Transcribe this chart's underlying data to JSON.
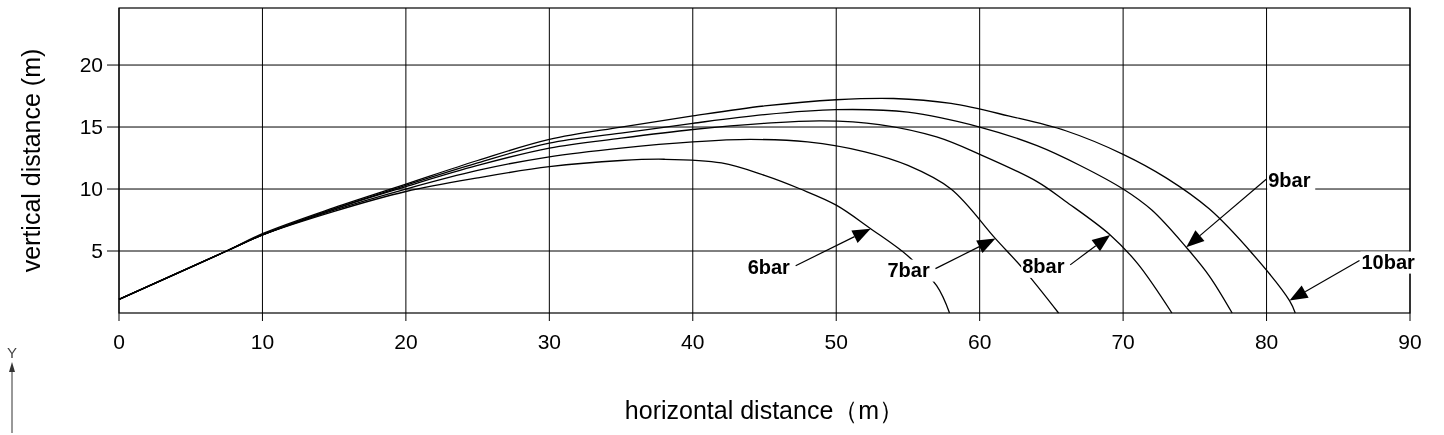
{
  "chart_data": {
    "type": "line",
    "xlabel": "horizontal distance（m）",
    "ylabel": "vertical distance (m)",
    "xlim": [
      0,
      90
    ],
    "ylim": [
      0,
      24.6
    ],
    "xticks": [
      0,
      10,
      20,
      30,
      40,
      50,
      60,
      70,
      80,
      90
    ],
    "yticks": [
      5,
      10,
      15,
      20
    ],
    "grid": true,
    "marker": "none",
    "line_style": "solid",
    "series": [
      {
        "color": "#000000",
        "x": [
          0,
          7.5,
          10,
          15,
          20,
          25,
          30,
          35,
          38,
          42,
          45,
          47.5,
          50,
          52.4,
          55,
          57,
          57.9
        ],
        "values": [
          1.1,
          5,
          6.3,
          8.2,
          9.8,
          10.9,
          11.8,
          12.3,
          12.4,
          12.1,
          11.1,
          10,
          8.7,
          6.8,
          4.6,
          2.2,
          0
        ]
      },
      {
        "color": "#000000",
        "x": [
          0,
          7.5,
          10,
          15,
          20,
          25,
          30,
          35,
          40,
          44,
          48,
          52,
          55,
          58,
          61.1,
          63,
          65.5
        ],
        "values": [
          1.1,
          5,
          6.3,
          8.3,
          10,
          11.5,
          12.6,
          13.3,
          13.8,
          14,
          13.8,
          13.0,
          11.9,
          10.0,
          6.0,
          3.6,
          0
        ]
      },
      {
        "color": "#000000",
        "x": [
          0,
          7.5,
          10,
          15,
          20,
          25,
          30,
          35,
          40,
          45,
          49,
          53,
          57,
          60,
          64,
          66,
          69.1,
          71,
          73.4
        ],
        "values": [
          1.1,
          5,
          6.3,
          8.4,
          10.2,
          11.9,
          13.3,
          14.1,
          14.8,
          15.3,
          15.5,
          15.2,
          14.2,
          12.8,
          10.6,
          9.0,
          6.3,
          4.0,
          0
        ]
      },
      {
        "color": "#000000",
        "x": [
          0,
          7.5,
          10,
          15,
          20,
          25,
          30,
          35,
          40,
          45,
          50,
          55,
          60,
          64,
          67,
          70,
          72,
          74.4,
          76,
          77.6
        ],
        "values": [
          1.1,
          5,
          6.3,
          8.4,
          10.3,
          12.1,
          13.7,
          14.5,
          15.3,
          16.0,
          16.4,
          16.2,
          15.0,
          13.5,
          11.9,
          10.0,
          8.3,
          5.3,
          3.0,
          0
        ]
      },
      {
        "color": "#000000",
        "x": [
          0,
          7.5,
          10,
          15,
          20,
          25,
          30,
          35,
          40,
          45,
          50,
          54,
          58,
          62,
          66,
          70,
          73,
          76,
          79,
          81.6,
          82
        ],
        "values": [
          1.1,
          5,
          6.4,
          8.5,
          10.4,
          12.3,
          14.0,
          15.0,
          15.9,
          16.7,
          17.2,
          17.3,
          16.9,
          15.9,
          14.7,
          12.8,
          10.9,
          8.4,
          4.8,
          1.0,
          0
        ]
      }
    ],
    "annotations": [
      "6bar",
      "7bar",
      "8bar",
      "9bar",
      "10bar",
      "Y"
    ]
  }
}
